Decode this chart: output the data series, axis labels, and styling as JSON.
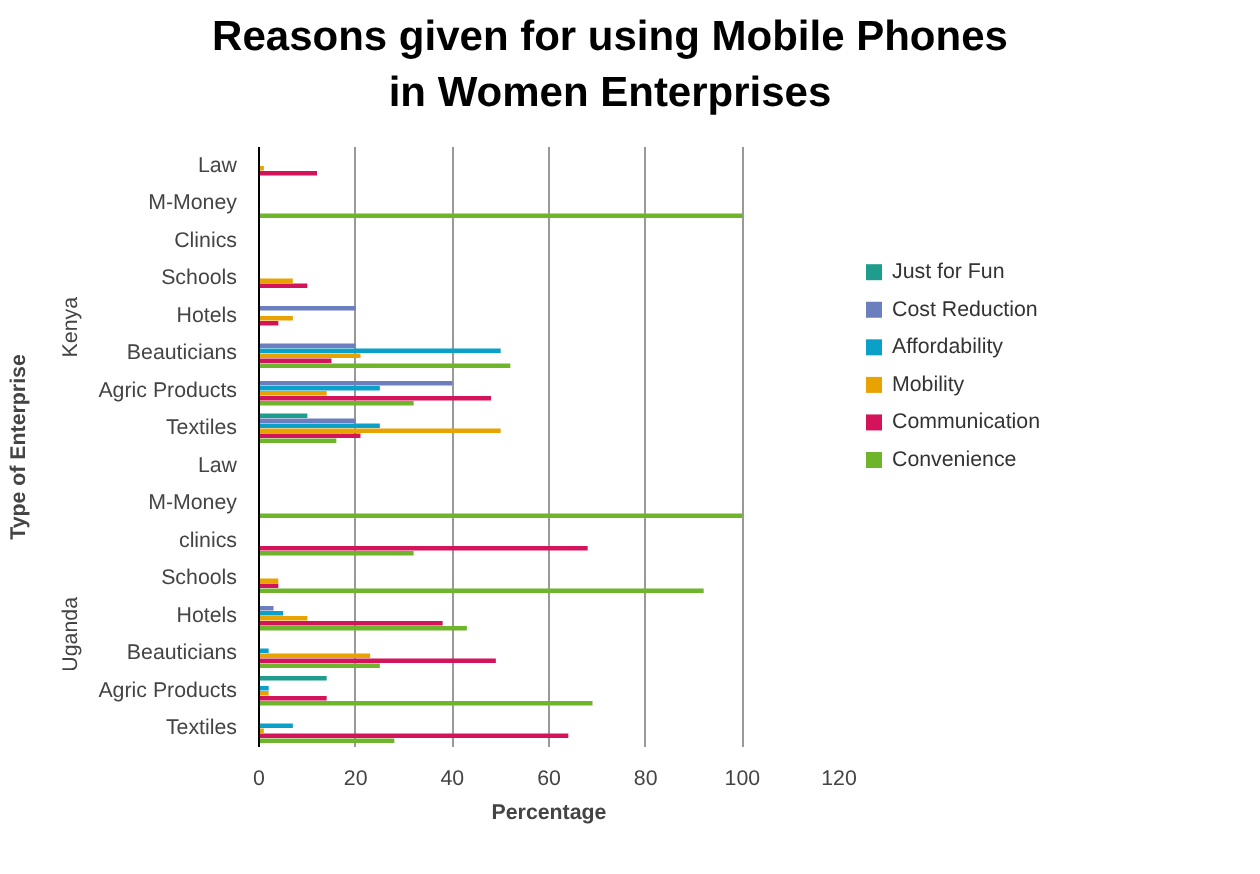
{
  "chart_data": {
    "type": "bar",
    "orientation": "horizontal",
    "title": "Reasons given for using Mobile Phones in Women Enterprises",
    "xlabel": "Percentage",
    "ylabel": "Type of Enterprise",
    "annotations": [
      "Kenya",
      "Uganda"
    ],
    "categories": [
      "Law",
      "M-Money",
      "Clinics",
      "Schools",
      "Hotels",
      "Beauticians",
      "Agric Products",
      "Textiles",
      "Law",
      "M-Money",
      "clinics",
      "Schools",
      "Hotels",
      "Beauticians",
      "Agric Products",
      "Textiles"
    ],
    "series": [
      {
        "name": "Just for Fun",
        "color": "#1e9c8c",
        "values": [
          0,
          0,
          0,
          0,
          0,
          0,
          0,
          10,
          0,
          0,
          0,
          0,
          0,
          0,
          14,
          0
        ]
      },
      {
        "name": "Cost Reduction",
        "color": "#6b7fbf",
        "values": [
          0,
          0,
          0,
          0,
          20,
          20,
          40,
          20,
          0,
          0,
          0,
          0,
          3,
          0,
          0,
          0
        ]
      },
      {
        "name": "Affordability",
        "color": "#0aa0c8",
        "values": [
          0,
          0,
          0,
          0,
          0,
          50,
          25,
          25,
          0,
          0,
          0,
          0,
          5,
          2,
          2,
          7
        ]
      },
      {
        "name": "Mobility",
        "color": "#e8a202",
        "values": [
          1,
          0,
          0,
          7,
          7,
          21,
          14,
          50,
          0,
          0,
          0,
          4,
          10,
          23,
          2,
          1
        ]
      },
      {
        "name": "Communication",
        "color": "#d4145a",
        "values": [
          12,
          0,
          0,
          10,
          4,
          15,
          48,
          21,
          0,
          0,
          68,
          4,
          38,
          49,
          14,
          64
        ]
      },
      {
        "name": "Convenience",
        "color": "#6fb52c",
        "values": [
          0,
          100,
          0,
          0,
          0,
          52,
          32,
          16,
          0,
          100,
          32,
          92,
          43,
          25,
          69,
          28
        ]
      }
    ],
    "xlim": [
      0,
      120
    ],
    "xticks": [
      0,
      20,
      40,
      60,
      80,
      100,
      120
    ],
    "grid": "x",
    "legend": "right"
  }
}
